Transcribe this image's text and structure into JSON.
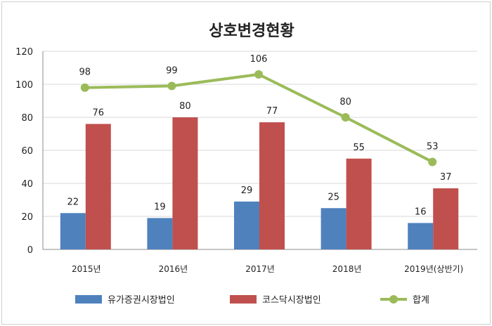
{
  "chart_data": {
    "type": "bar",
    "title": "상호변경현황",
    "categories": [
      "2015년",
      "2016년",
      "2017년",
      "2018년",
      "2019년(상반기)"
    ],
    "ylim": [
      0,
      120
    ],
    "yticks": [
      0,
      20,
      40,
      60,
      80,
      100,
      120
    ],
    "grid": true,
    "legend_position": "bottom",
    "series": [
      {
        "name": "유가증권시장법인",
        "type": "bar",
        "color": "#4f81bd",
        "values": [
          22,
          19,
          29,
          25,
          16
        ]
      },
      {
        "name": "코스닥시장법인",
        "type": "bar",
        "color": "#c0504d",
        "values": [
          76,
          80,
          77,
          55,
          37
        ]
      },
      {
        "name": "합계",
        "type": "line",
        "color": "#9bbb59",
        "values": [
          98,
          99,
          106,
          80,
          53
        ]
      }
    ]
  }
}
